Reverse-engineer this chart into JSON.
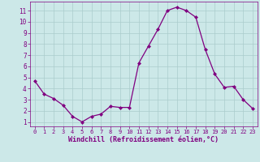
{
  "x": [
    0,
    1,
    2,
    3,
    4,
    5,
    6,
    7,
    8,
    9,
    10,
    11,
    12,
    13,
    14,
    15,
    16,
    17,
    18,
    19,
    20,
    21,
    22,
    23
  ],
  "y": [
    4.7,
    3.5,
    3.1,
    2.5,
    1.5,
    1.0,
    1.5,
    1.7,
    2.4,
    2.3,
    2.3,
    6.3,
    7.8,
    9.3,
    11.0,
    11.3,
    11.0,
    10.4,
    7.5,
    5.3,
    4.1,
    4.2,
    3.0,
    2.2
  ],
  "line_color": "#800080",
  "marker": "D",
  "marker_size": 2.0,
  "bg_color": "#cce8e8",
  "grid_color": "#aacccc",
  "xlabel": "Windchill (Refroidissement éolien,°C)",
  "xlabel_fontsize": 6.0,
  "xtick_fontsize": 5.0,
  "ytick_fontsize": 5.5,
  "ylim": [
    0.6,
    11.8
  ],
  "xlim": [
    -0.5,
    23.5
  ],
  "yticks": [
    1,
    2,
    3,
    4,
    5,
    6,
    7,
    8,
    9,
    10,
    11
  ],
  "xticks": [
    0,
    1,
    2,
    3,
    4,
    5,
    6,
    7,
    8,
    9,
    10,
    11,
    12,
    13,
    14,
    15,
    16,
    17,
    18,
    19,
    20,
    21,
    22,
    23
  ]
}
